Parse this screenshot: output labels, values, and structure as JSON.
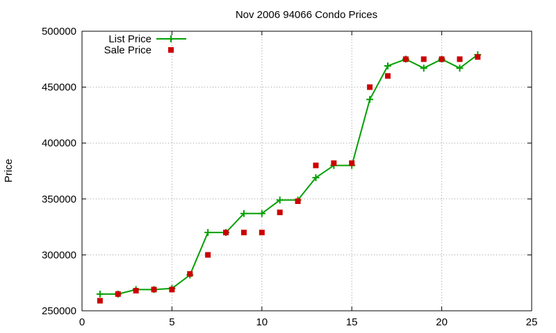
{
  "chart_data": {
    "type": "line",
    "title": "Nov 2006 94066 Condo Prices",
    "ylabel": "Price",
    "xlabel": "",
    "xlim": [
      0,
      25
    ],
    "ylim": [
      250000,
      500000
    ],
    "xticks": [
      0,
      5,
      10,
      15,
      20,
      25
    ],
    "yticks": [
      250000,
      300000,
      350000,
      400000,
      450000,
      500000
    ],
    "grid": true,
    "legend": "top-left",
    "series": [
      {
        "name": "List Price",
        "style": "line-plus",
        "color": "#00a000",
        "points": [
          [
            1,
            265000
          ],
          [
            2,
            265000
          ],
          [
            3,
            269000
          ],
          [
            4,
            269000
          ],
          [
            5,
            270000
          ],
          [
            6,
            282000
          ],
          [
            7,
            320000
          ],
          [
            8,
            320000
          ],
          [
            9,
            337000
          ],
          [
            10,
            337000
          ],
          [
            11,
            349000
          ],
          [
            12,
            349000
          ],
          [
            13,
            369000
          ],
          [
            14,
            380000
          ],
          [
            15,
            380000
          ],
          [
            16,
            439000
          ],
          [
            17,
            469000
          ],
          [
            18,
            475000
          ],
          [
            19,
            467000
          ],
          [
            20,
            475000
          ],
          [
            21,
            467000
          ],
          [
            22,
            479000
          ]
        ]
      },
      {
        "name": "Sale Price",
        "style": "square",
        "color": "#cc0000",
        "points": [
          [
            1,
            259000
          ],
          [
            2,
            265000
          ],
          [
            3,
            268000
          ],
          [
            4,
            269000
          ],
          [
            5,
            269000
          ],
          [
            6,
            283000
          ],
          [
            7,
            300000
          ],
          [
            8,
            320000
          ],
          [
            9,
            320000
          ],
          [
            10,
            320000
          ],
          [
            11,
            338000
          ],
          [
            12,
            348000
          ],
          [
            13,
            380000
          ],
          [
            14,
            382000
          ],
          [
            15,
            382000
          ],
          [
            16,
            450000
          ],
          [
            17,
            460000
          ],
          [
            18,
            475000
          ],
          [
            19,
            475000
          ],
          [
            20,
            475000
          ],
          [
            21,
            475000
          ],
          [
            22,
            477000
          ]
        ]
      }
    ]
  }
}
